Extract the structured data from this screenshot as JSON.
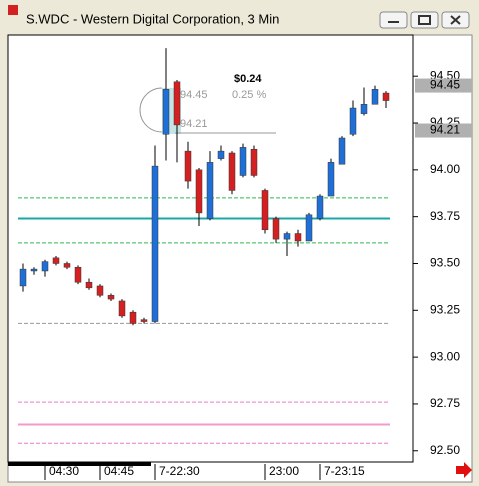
{
  "chart_data": {
    "type": "candlestick",
    "title": "S.WDC - Western Digital Corporation, 3 Min",
    "categories": [
      null,
      null,
      "04:30",
      null,
      null,
      null,
      null,
      "04:45",
      null,
      null,
      null,
      null,
      "7-22:30",
      null,
      null,
      null,
      null,
      null,
      null,
      null,
      null,
      null,
      "23:00",
      null,
      null,
      null,
      null,
      "7-23:15",
      null,
      null,
      null,
      null,
      null,
      null
    ],
    "open": [
      93.38,
      93.46,
      93.46,
      93.53,
      93.5,
      93.48,
      93.4,
      93.38,
      93.33,
      93.3,
      93.24,
      93.2,
      93.19,
      94.19,
      94.47,
      94.1,
      94.0,
      93.74,
      94.06,
      94.09,
      93.97,
      94.11,
      93.89,
      93.74,
      93.63,
      93.66,
      93.62,
      93.74,
      93.86,
      94.03,
      94.19,
      94.3,
      94.35,
      94.41
    ],
    "high": [
      93.5,
      93.48,
      93.52,
      93.54,
      93.51,
      93.49,
      93.42,
      93.39,
      93.34,
      93.31,
      93.25,
      93.21,
      94.13,
      94.65,
      94.48,
      94.15,
      94.01,
      94.1,
      94.13,
      94.1,
      94.14,
      94.13,
      93.9,
      93.75,
      93.67,
      93.68,
      93.77,
      93.87,
      94.06,
      94.18,
      94.37,
      94.44,
      94.45,
      94.42
    ],
    "low": [
      93.35,
      93.44,
      93.43,
      93.49,
      93.47,
      93.39,
      93.36,
      93.32,
      93.3,
      93.21,
      93.17,
      93.18,
      93.18,
      94.05,
      94.04,
      93.9,
      93.7,
      93.73,
      94.05,
      93.87,
      93.96,
      93.96,
      93.66,
      93.61,
      93.54,
      93.59,
      93.62,
      93.73,
      93.86,
      94.03,
      94.18,
      94.29,
      94.35,
      94.33
    ],
    "close": [
      93.47,
      93.47,
      93.51,
      93.5,
      93.48,
      93.4,
      93.37,
      93.33,
      93.31,
      93.22,
      93.18,
      93.19,
      94.02,
      94.43,
      94.24,
      93.94,
      93.77,
      94.04,
      94.1,
      93.89,
      94.12,
      93.97,
      93.68,
      93.63,
      93.66,
      93.62,
      93.76,
      93.86,
      94.04,
      94.17,
      94.33,
      94.35,
      94.43,
      94.37
    ],
    "up_color": "#1f6fd6",
    "down_color": "#d42020",
    "ylim": [
      92.44,
      94.72
    ],
    "yticks": [
      {
        "value": 92.5,
        "label": "92.50"
      },
      92.75,
      {
        "value": 93,
        "label": "93.00"
      },
      93.25,
      {
        "value": 93.5,
        "label": "93.50"
      },
      93.75,
      {
        "value": 94,
        "label": "94.00"
      },
      94.25,
      {
        "value": 94.5,
        "label": "94.50"
      }
    ],
    "reference_lines": [
      {
        "value": 93.85,
        "color": "#2eb84b",
        "dash": true
      },
      {
        "value": 93.74,
        "color": "#1aa7a7",
        "dash": false
      },
      {
        "value": 93.61,
        "color": "#2eb84b",
        "dash": true
      },
      {
        "value": 93.18,
        "color": "#999999",
        "dash": true
      },
      {
        "value": 92.76,
        "color": "#e87fc8",
        "dash": true
      },
      {
        "value": 92.64,
        "color": "#f29ac8",
        "dash": false
      },
      {
        "value": 92.54,
        "color": "#e87fc8",
        "dash": true
      }
    ],
    "price_labels": [
      {
        "value": 94.45,
        "label": "94.45"
      },
      {
        "value": 94.21,
        "label": "94.21"
      }
    ],
    "annotations": [
      "$0.24",
      "94.45",
      "0.25 %",
      "94.21"
    ]
  }
}
